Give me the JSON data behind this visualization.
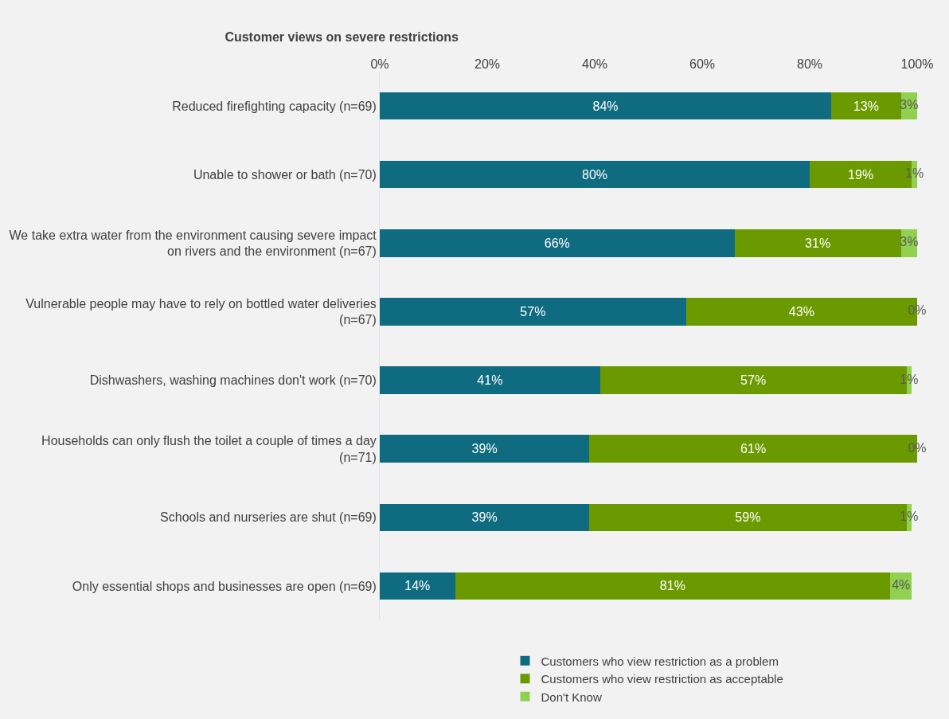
{
  "chart_data": {
    "type": "bar",
    "title": "Customer views on severe restrictions",
    "orientation": "horizontal",
    "stacked": true,
    "data_labels": true,
    "legend": "bottom",
    "grid": false,
    "categories": [
      "Reduced firefighting capacity (n=69)",
      "Unable to shower or bath (n=70)",
      "We take extra water from the environment causing severe impact on rivers and the environment (n=67)",
      "Vulnerable people may have to rely on bottled water deliveries (n=67)",
      "Dishwashers, washing machines don't work (n=70)",
      "Households can only flush the toilet a couple of times a day (n=71)",
      "Schools and nurseries are shut (n=69)",
      "Only essential shops and businesses are open (n=69)"
    ],
    "xlim": [
      0,
      100
    ],
    "xticks": [
      {
        "value": 0,
        "label": "0%"
      },
      {
        "value": 20,
        "label": "20%"
      },
      {
        "value": 40,
        "label": "40%"
      },
      {
        "value": 60,
        "label": "60%"
      },
      {
        "value": 80,
        "label": "80%"
      },
      {
        "value": 100,
        "label": "100%"
      }
    ],
    "series": [
      {
        "name": "Customers who view restriction as a problem",
        "color": "#0f6b80",
        "values": [
          84,
          80,
          66,
          57,
          41,
          39,
          39,
          14
        ],
        "value_labels": [
          "84%",
          "80%",
          "66%",
          "57%",
          "41%",
          "39%",
          "39%",
          "14%"
        ]
      },
      {
        "name": "Customers who view restriction as acceptable",
        "color": "#6b9a00",
        "values": [
          13,
          19,
          31,
          43,
          57,
          61,
          59,
          81
        ],
        "value_labels": [
          "13%",
          "19%",
          "31%",
          "43%",
          "57%",
          "61%",
          "59%",
          "81%"
        ]
      },
      {
        "name": "Don't Know",
        "color": "#92d050",
        "values": [
          3,
          1,
          3,
          0,
          1,
          0,
          1,
          4
        ],
        "value_labels": [
          "3%",
          "1%",
          "3%",
          "0%",
          "1%",
          "0%",
          "1%",
          "4%"
        ]
      }
    ]
  }
}
